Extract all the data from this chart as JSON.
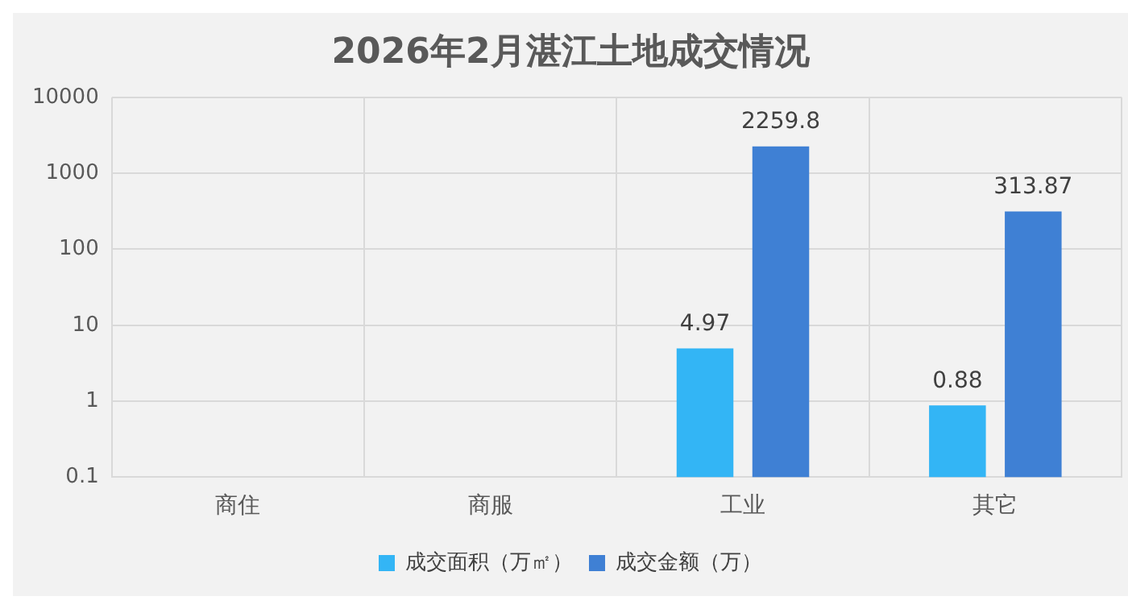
{
  "chart_data": {
    "type": "bar",
    "title": "2026年2月湛江土地成交情况",
    "categories": [
      "商住",
      "商服",
      "工业",
      "其它"
    ],
    "series": [
      {
        "name": "成交面积（万㎡）",
        "color": "#33b5f5",
        "values": [
          null,
          null,
          4.97,
          0.88
        ]
      },
      {
        "name": "成交金额（万）",
        "color": "#3f80d4",
        "values": [
          null,
          null,
          2259.8,
          313.87
        ]
      }
    ],
    "log": "y",
    "ylim": [
      0.1,
      10000
    ],
    "yticks": [
      0.1,
      1,
      10,
      100,
      1000,
      10000
    ],
    "grid": true,
    "legend": "bottom",
    "data_labels": true
  }
}
